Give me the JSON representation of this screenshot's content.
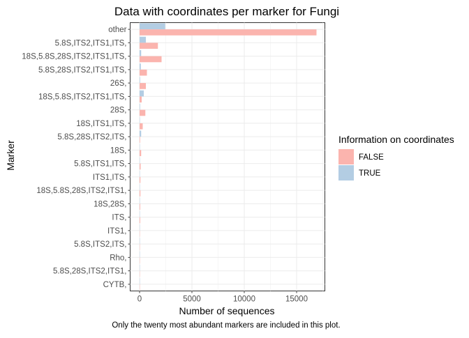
{
  "chart_data": {
    "type": "bar",
    "orientation": "horizontal",
    "title": "Data with coordinates per marker for Fungi",
    "xlabel": "Number of sequences",
    "ylabel": "Marker",
    "caption": "Only the twenty most abundant markers are included in this plot.",
    "xlim": [
      -900,
      17700
    ],
    "xticks": [
      0,
      5000,
      10000,
      15000
    ],
    "grid": true,
    "legend": {
      "title": "Information on coordinates",
      "placement": "right",
      "entries": [
        "FALSE",
        "TRUE"
      ]
    },
    "categories": [
      "other",
      "5.8S,ITS2,ITS1,ITS,",
      "18S,5.8S,28S,ITS2,ITS1,ITS,",
      "5.8S,28S,ITS2,ITS1,ITS,",
      "26S,",
      "18S,5.8S,ITS2,ITS1,ITS,",
      "28S,",
      "18S,ITS1,ITS,",
      "5.8S,28S,ITS2,ITS,",
      "18S,",
      "5.8S,ITS1,ITS,",
      "ITS1,ITS,",
      "18S,5.8S,28S,ITS2,ITS1,",
      "18S,28S,",
      "ITS,",
      "ITS1,",
      "5.8S,ITS2,ITS,",
      "Rho,",
      "5.8S,28S,ITS2,ITS1,",
      "CYTB,"
    ],
    "series": [
      {
        "name": "FALSE",
        "color": "#fbb4ae",
        "values": [
          16900,
          1750,
          2100,
          700,
          600,
          200,
          550,
          300,
          50,
          150,
          100,
          80,
          80,
          60,
          60,
          10,
          10,
          5,
          5,
          5
        ]
      },
      {
        "name": "TRUE",
        "color": "#b3cde3",
        "values": [
          2450,
          600,
          150,
          120,
          50,
          400,
          50,
          30,
          150,
          20,
          20,
          10,
          10,
          10,
          10,
          5,
          5,
          5,
          5,
          5
        ]
      }
    ]
  }
}
